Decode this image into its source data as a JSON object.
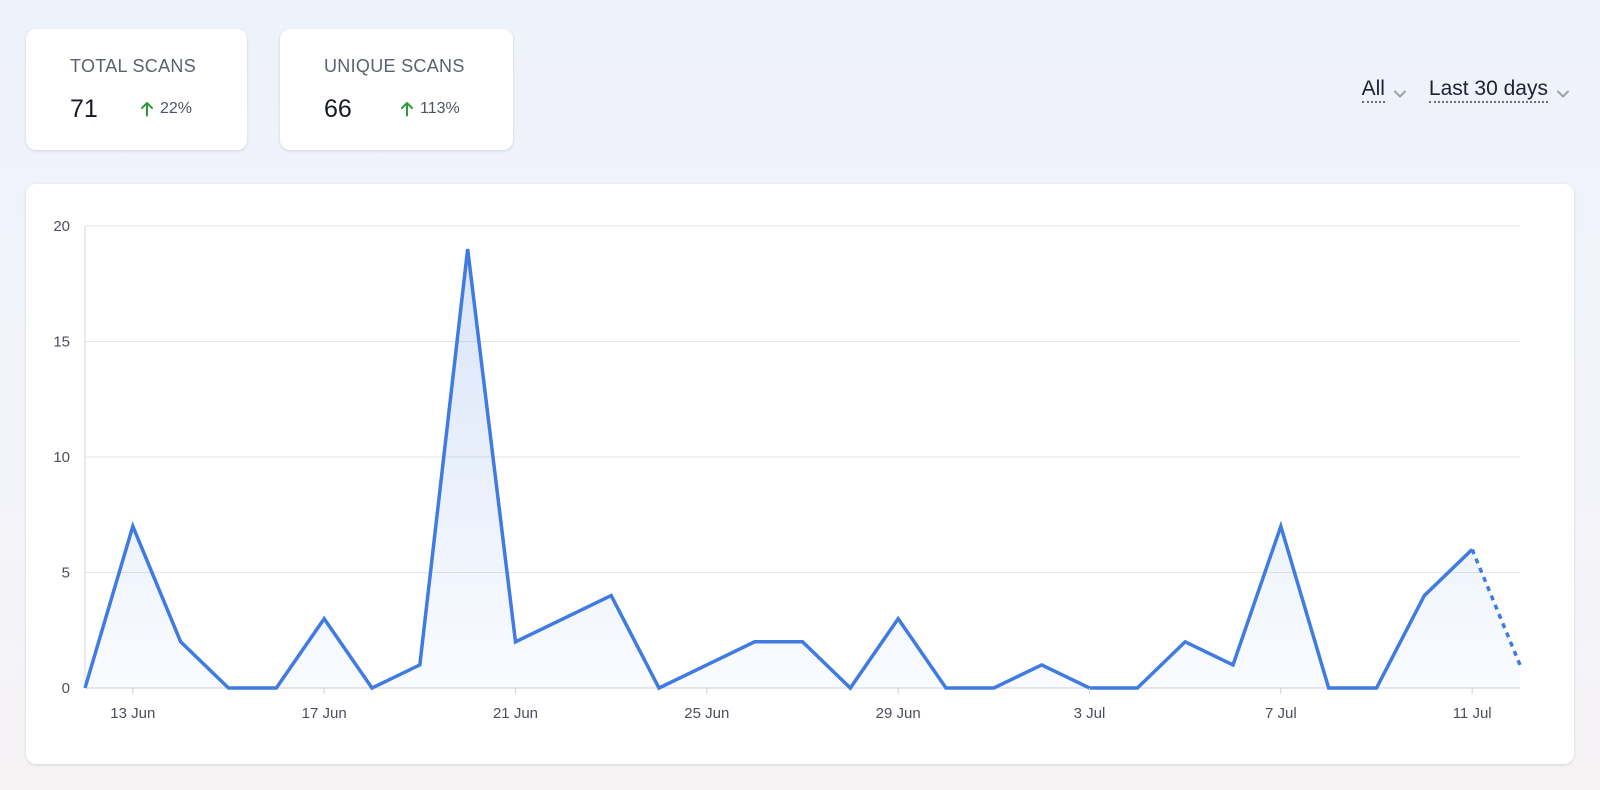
{
  "stats": {
    "total": {
      "label": "TOTAL SCANS",
      "value": "71",
      "change": "22%"
    },
    "unique": {
      "label": "UNIQUE SCANS",
      "value": "66",
      "change": "113%"
    }
  },
  "filters": {
    "scope": "All",
    "range": "Last 30 days"
  },
  "colors": {
    "line": "#3f7be0",
    "positive": "#2f9a3c",
    "grid": "#e4e6ea"
  },
  "chart_data": {
    "type": "area",
    "x": [
      "12 Jun",
      "13 Jun",
      "14 Jun",
      "15 Jun",
      "16 Jun",
      "17 Jun",
      "18 Jun",
      "19 Jun",
      "20 Jun",
      "21 Jun",
      "22 Jun",
      "23 Jun",
      "24 Jun",
      "25 Jun",
      "26 Jun",
      "27 Jun",
      "28 Jun",
      "29 Jun",
      "30 Jun",
      "1 Jul",
      "2 Jul",
      "3 Jul",
      "4 Jul",
      "5 Jul",
      "6 Jul",
      "7 Jul",
      "8 Jul",
      "9 Jul",
      "10 Jul",
      "11 Jul",
      "12 Jul"
    ],
    "values": [
      0,
      7,
      2,
      0,
      0,
      3,
      0,
      1,
      19,
      2,
      3,
      4,
      0,
      1,
      2,
      2,
      0,
      3,
      0,
      0,
      1,
      0,
      0,
      2,
      1,
      7,
      0,
      0,
      4,
      6,
      1
    ],
    "partial_last_point": true,
    "x_ticks": [
      "13 Jun",
      "17 Jun",
      "21 Jun",
      "25 Jun",
      "29 Jun",
      "3 Jul",
      "7 Jul",
      "11 Jul"
    ],
    "y_ticks": [
      0,
      5,
      10,
      15,
      20
    ],
    "ylim": [
      0,
      20
    ],
    "grid": "horizontal"
  }
}
